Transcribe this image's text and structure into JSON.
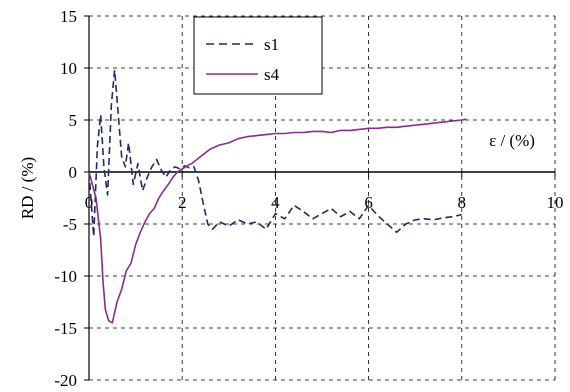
{
  "chart_data": {
    "type": "line",
    "title": "",
    "xlabel": "ε / (%)",
    "ylabel": "RD / (%)",
    "xlim": [
      0,
      10
    ],
    "ylim": [
      -20,
      15
    ],
    "xticks": [
      "0",
      "2",
      "4",
      "6",
      "8",
      "10"
    ],
    "yticks": [
      "15",
      "10",
      "5",
      "0",
      "-5",
      "-10",
      "-15",
      "-20"
    ],
    "xtick_values": [
      0,
      2,
      4,
      6,
      8,
      10
    ],
    "ytick_values": [
      15,
      10,
      5,
      0,
      -5,
      -10,
      -15,
      -20
    ],
    "grid": true,
    "legend_position": "top-center",
    "series": [
      {
        "name": "s1",
        "color": "#1f2a6b",
        "dash": "dashed",
        "x": [
          0,
          0.1,
          0.18,
          0.25,
          0.32,
          0.4,
          0.48,
          0.55,
          0.62,
          0.7,
          0.78,
          0.85,
          0.95,
          1.05,
          1.15,
          1.25,
          1.35,
          1.45,
          1.55,
          1.65,
          1.75,
          1.85,
          1.95,
          2.05,
          2.15,
          2.25,
          2.35,
          2.45,
          2.55,
          2.65,
          2.8,
          3.0,
          3.2,
          3.4,
          3.6,
          3.8,
          4.0,
          4.2,
          4.4,
          4.6,
          4.8,
          5.0,
          5.2,
          5.4,
          5.6,
          5.8,
          6.0,
          6.2,
          6.4,
          6.6,
          6.8,
          7.0,
          7.2,
          7.4,
          7.6,
          7.8,
          8.0
        ],
        "y": [
          0,
          -6.2,
          2.5,
          5.5,
          0.5,
          -2.2,
          6.5,
          9.8,
          6.0,
          1.5,
          0.5,
          2.8,
          -1.2,
          0.8,
          -1.8,
          -0.5,
          0.5,
          1.2,
          0.2,
          -0.5,
          0.2,
          0.5,
          0.3,
          0.6,
          0.4,
          0.5,
          -0.8,
          -3.0,
          -5.0,
          -5.5,
          -4.8,
          -5.2,
          -4.6,
          -5.0,
          -4.8,
          -5.5,
          -4.0,
          -4.5,
          -3.2,
          -3.8,
          -4.5,
          -4.0,
          -3.5,
          -4.3,
          -3.8,
          -4.5,
          -3.2,
          -4.2,
          -5.0,
          -5.8,
          -5.0,
          -4.6,
          -4.5,
          -4.6,
          -4.4,
          -4.3,
          -4.1
        ]
      },
      {
        "name": "s4",
        "color": "#8a2d8a",
        "dash": "solid",
        "x": [
          0,
          0.15,
          0.25,
          0.3,
          0.35,
          0.42,
          0.5,
          0.6,
          0.7,
          0.8,
          0.9,
          1.0,
          1.1,
          1.2,
          1.3,
          1.4,
          1.5,
          1.6,
          1.7,
          1.8,
          1.9,
          2.0,
          2.1,
          2.2,
          2.4,
          2.6,
          2.8,
          3.0,
          3.2,
          3.4,
          3.6,
          3.8,
          4.0,
          4.2,
          4.4,
          4.6,
          4.8,
          5.0,
          5.2,
          5.4,
          5.6,
          5.8,
          6.0,
          6.2,
          6.4,
          6.6,
          6.8,
          7.0,
          7.2,
          7.4,
          7.6,
          7.8,
          8.0,
          8.1
        ],
        "y": [
          0,
          -2.5,
          -6.5,
          -10.5,
          -13.2,
          -14.3,
          -14.5,
          -12.5,
          -11.3,
          -9.5,
          -8.8,
          -7.0,
          -5.8,
          -4.8,
          -4.0,
          -3.5,
          -2.5,
          -1.8,
          -1.2,
          -0.5,
          0.0,
          0.3,
          0.6,
          0.8,
          1.5,
          2.2,
          2.6,
          2.8,
          3.2,
          3.4,
          3.5,
          3.6,
          3.7,
          3.7,
          3.8,
          3.8,
          3.9,
          3.9,
          3.8,
          4.0,
          4.0,
          4.1,
          4.2,
          4.2,
          4.3,
          4.3,
          4.4,
          4.5,
          4.6,
          4.7,
          4.8,
          4.9,
          5.0,
          5.1
        ]
      }
    ]
  }
}
